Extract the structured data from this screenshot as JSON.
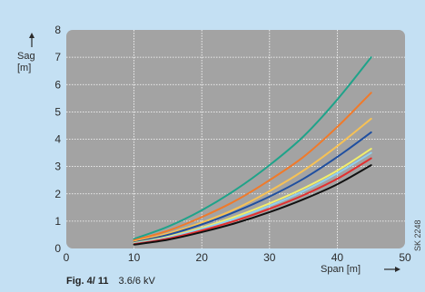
{
  "chart_data": {
    "type": "line",
    "title": "",
    "xlabel": "Span [m]",
    "ylabel_line1": "Sag",
    "ylabel_line2": "[m]",
    "xlim": [
      0,
      50
    ],
    "ylim": [
      0,
      8
    ],
    "x_ticks": [
      "0",
      "10",
      "20",
      "30",
      "40",
      "50"
    ],
    "y_ticks": [
      "0",
      "1",
      "2",
      "3",
      "4",
      "5",
      "6",
      "7",
      "8"
    ],
    "grid": true,
    "series": [
      {
        "color": "#1fa38a",
        "x": [
          10,
          15,
          20,
          25,
          30,
          35,
          40,
          45
        ],
        "y": [
          0.35,
          0.8,
          1.4,
          2.15,
          3.05,
          4.1,
          5.45,
          7.0
        ]
      },
      {
        "color": "#f07a2a",
        "x": [
          10,
          15,
          20,
          25,
          30,
          35,
          40,
          45
        ],
        "y": [
          0.3,
          0.65,
          1.15,
          1.75,
          2.5,
          3.35,
          4.45,
          5.7
        ]
      },
      {
        "color": "#f6c155",
        "x": [
          10,
          15,
          20,
          25,
          30,
          35,
          40,
          45
        ],
        "y": [
          0.25,
          0.55,
          0.95,
          1.45,
          2.1,
          2.85,
          3.75,
          4.75
        ]
      },
      {
        "color": "#1f4fa0",
        "x": [
          10,
          15,
          20,
          25,
          30,
          35,
          40,
          45
        ],
        "y": [
          0.22,
          0.5,
          0.88,
          1.35,
          1.9,
          2.55,
          3.35,
          4.25
        ]
      },
      {
        "color": "#f2ee6a",
        "x": [
          10,
          15,
          20,
          25,
          30,
          35,
          40,
          45
        ],
        "y": [
          0.2,
          0.43,
          0.76,
          1.17,
          1.65,
          2.2,
          2.85,
          3.65
        ]
      },
      {
        "color": "#8fd0ef",
        "x": [
          10,
          15,
          20,
          25,
          30,
          35,
          40,
          45
        ],
        "y": [
          0.18,
          0.4,
          0.72,
          1.1,
          1.56,
          2.1,
          2.75,
          3.5
        ]
      },
      {
        "color": "#e23030",
        "x": [
          10,
          15,
          20,
          25,
          30,
          35,
          40,
          45
        ],
        "y": [
          0.16,
          0.36,
          0.66,
          1.02,
          1.45,
          1.95,
          2.55,
          3.3
        ]
      },
      {
        "color": "#111111",
        "x": [
          10,
          15,
          20,
          25,
          30,
          35,
          40,
          45
        ],
        "y": [
          0.14,
          0.32,
          0.6,
          0.93,
          1.33,
          1.8,
          2.35,
          3.05
        ]
      }
    ],
    "plot_bg": "#a3a3a3",
    "grid_color": "#ffffff"
  },
  "caption": {
    "figure": "Fig. 4/ 11",
    "text": "3.6/6 kV"
  },
  "side_code": "SK 2248"
}
